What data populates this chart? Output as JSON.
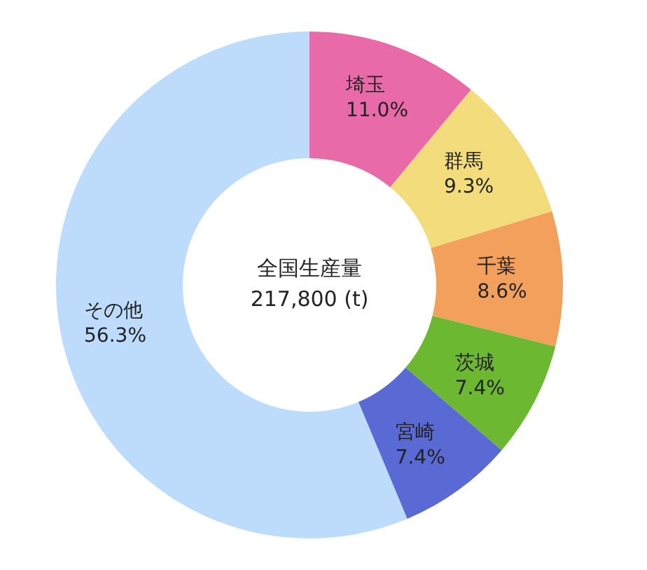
{
  "chart_data": {
    "type": "donut",
    "categories": [
      "埼玉",
      "群馬",
      "千葉",
      "茨城",
      "宮崎",
      "その他"
    ],
    "values": [
      11.0,
      9.3,
      8.6,
      7.4,
      7.4,
      56.3
    ],
    "value_labels": [
      "11.0%",
      "9.3%",
      "8.6%",
      "7.4%",
      "7.4%",
      "56.3%"
    ],
    "colors": [
      "#e86aa8",
      "#f2dc7c",
      "#f2a05c",
      "#6cb830",
      "#5a6ad4",
      "#bddcfb"
    ],
    "annotations": [
      "全国生産量",
      "217,800 (t)"
    ],
    "legend": false
  }
}
